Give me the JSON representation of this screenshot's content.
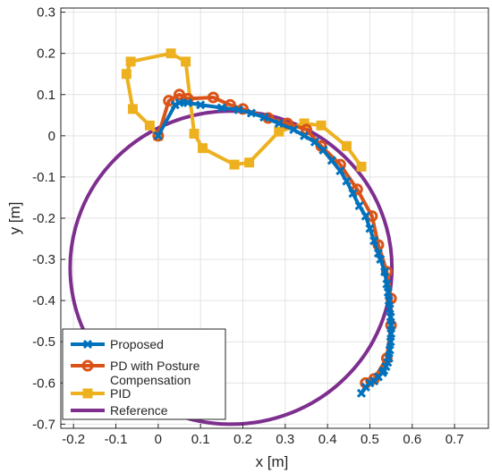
{
  "chart_data": {
    "type": "line",
    "xlabel": "x [m]",
    "ylabel": "y [m]",
    "xlim": [
      -0.23,
      0.78
    ],
    "ylim": [
      -0.71,
      0.31
    ],
    "xticks": [
      -0.2,
      -0.1,
      0,
      0.1,
      0.2,
      0.3,
      0.4,
      0.5,
      0.6,
      0.7
    ],
    "yticks": [
      0.3,
      0.2,
      0.1,
      0,
      -0.1,
      -0.2,
      -0.3,
      -0.4,
      -0.5,
      -0.6,
      -0.7
    ],
    "xtick_labels": [
      "-0.2",
      "-0.1",
      "0",
      "0.1",
      "0.2",
      "0.3",
      "0.4",
      "0.5",
      "0.6",
      "0.7"
    ],
    "ytick_labels": [
      "0.3",
      "0.2",
      "0.1",
      "0",
      "-0.1",
      "-0.2",
      "-0.3",
      "-0.4",
      "-0.5",
      "-0.6",
      "-0.7"
    ],
    "grid": true,
    "legend_position": "bottom-left",
    "series": [
      {
        "name": "Reference",
        "color": "#7E2F8E",
        "marker": "none",
        "shape": "circle",
        "center": [
          0.172,
          -0.32
        ],
        "radius": 0.38
      },
      {
        "name": "PID",
        "color": "#EDB120",
        "marker": "square",
        "x": [
          0.0,
          -0.02,
          -0.06,
          -0.075,
          -0.065,
          0.03,
          0.065,
          0.085,
          0.105,
          0.18,
          0.215,
          0.285,
          0.345,
          0.385,
          0.445,
          0.48
        ],
        "y": [
          0.0,
          0.025,
          0.065,
          0.15,
          0.18,
          0.2,
          0.18,
          0.005,
          -0.03,
          -0.07,
          -0.065,
          0.01,
          0.03,
          0.025,
          -0.025,
          -0.075
        ]
      },
      {
        "name": "PD with Posture Compensation",
        "color": "#D95319",
        "marker": "circle",
        "x": [
          0.0,
          0.025,
          0.05,
          0.07,
          0.13,
          0.17,
          0.2,
          0.26,
          0.305,
          0.35,
          0.385,
          0.43,
          0.47,
          0.505,
          0.52,
          0.54,
          0.55,
          0.55,
          0.54,
          0.51,
          0.49
        ],
        "y": [
          0.0,
          0.085,
          0.1,
          0.09,
          0.093,
          0.075,
          0.065,
          0.043,
          0.03,
          0.015,
          -0.025,
          -0.07,
          -0.13,
          -0.195,
          -0.265,
          -0.33,
          -0.395,
          -0.46,
          -0.54,
          -0.59,
          -0.6
        ]
      },
      {
        "name": "Proposed",
        "color": "#0072BD",
        "marker": "x",
        "x": [
          0.0,
          0.04,
          0.05,
          0.07,
          0.1,
          0.15,
          0.19,
          0.22,
          0.25,
          0.285,
          0.32,
          0.345,
          0.37,
          0.39,
          0.41,
          0.43,
          0.445,
          0.46,
          0.475,
          0.49,
          0.5,
          0.51,
          0.52,
          0.525,
          0.535,
          0.54,
          0.543,
          0.545,
          0.547,
          0.549,
          0.55,
          0.55,
          0.549,
          0.547,
          0.545,
          0.542,
          0.538,
          0.533,
          0.53,
          0.52,
          0.51,
          0.5,
          0.49,
          0.48
        ],
        "y": [
          0.0,
          0.075,
          0.08,
          0.08,
          0.075,
          0.068,
          0.063,
          0.055,
          0.045,
          0.03,
          0.015,
          0.0,
          -0.015,
          -0.035,
          -0.06,
          -0.085,
          -0.11,
          -0.14,
          -0.17,
          -0.195,
          -0.225,
          -0.255,
          -0.285,
          -0.3,
          -0.33,
          -0.36,
          -0.38,
          -0.4,
          -0.42,
          -0.44,
          -0.46,
          -0.48,
          -0.5,
          -0.52,
          -0.54,
          -0.55,
          -0.56,
          -0.57,
          -0.575,
          -0.585,
          -0.595,
          -0.6,
          -0.61,
          -0.625
        ]
      }
    ],
    "legend": [
      {
        "label": "Proposed",
        "color": "#0072BD",
        "marker": "x"
      },
      {
        "label": "PD with Posture\nCompensation",
        "color": "#D95319",
        "marker": "circle"
      },
      {
        "label": "PID",
        "color": "#EDB120",
        "marker": "square"
      },
      {
        "label": "Reference",
        "color": "#7E2F8E",
        "marker": "none"
      }
    ]
  }
}
